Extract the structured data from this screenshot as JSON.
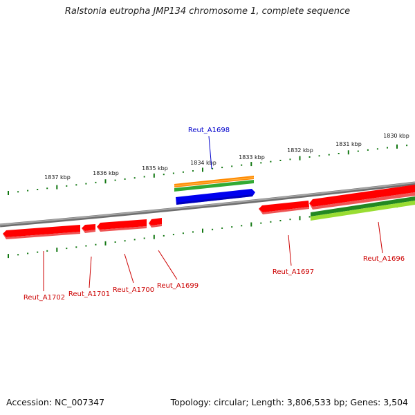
{
  "title": "Ralstonia eutropha JMP134 chromosome 1, complete sequence",
  "footer": {
    "accession": "Accession: NC_007347",
    "topology": "Topology: circular; Length: 3,806,533 bp; Genes: 3,504"
  },
  "colors": {
    "backbone": "#8a8a8a",
    "gene_red": "#ff0000",
    "gene_blue": "#0000ee",
    "tick_green": "#117711",
    "label_red": "#cc0000",
    "label_blue": "#0000cc",
    "orange": "#ff8800",
    "green": "#33aa33",
    "light_green": "#88dd33",
    "dark_green": "#228822"
  },
  "kbp_ticks": [
    {
      "label": "1837 kbp"
    },
    {
      "label": "1836 kbp"
    },
    {
      "label": "1835 kbp"
    },
    {
      "label": "1834 kbp"
    },
    {
      "label": "1833 kbp"
    },
    {
      "label": "1832 kbp"
    },
    {
      "label": "1831 kbp"
    },
    {
      "label": "1830 kbp"
    }
  ],
  "genes": [
    {
      "id": "Reut_A1702",
      "strand": "-",
      "color": "red"
    },
    {
      "id": "Reut_A1701",
      "strand": "-",
      "color": "red"
    },
    {
      "id": "Reut_A1700",
      "strand": "-",
      "color": "red"
    },
    {
      "id": "Reut_A1699",
      "strand": "-",
      "color": "red"
    },
    {
      "id": "Reut_A1698",
      "strand": "+",
      "color": "blue"
    },
    {
      "id": "Reut_A1697",
      "strand": "-",
      "color": "red"
    },
    {
      "id": "Reut_A1696",
      "strand": "-",
      "color": "red"
    }
  ]
}
